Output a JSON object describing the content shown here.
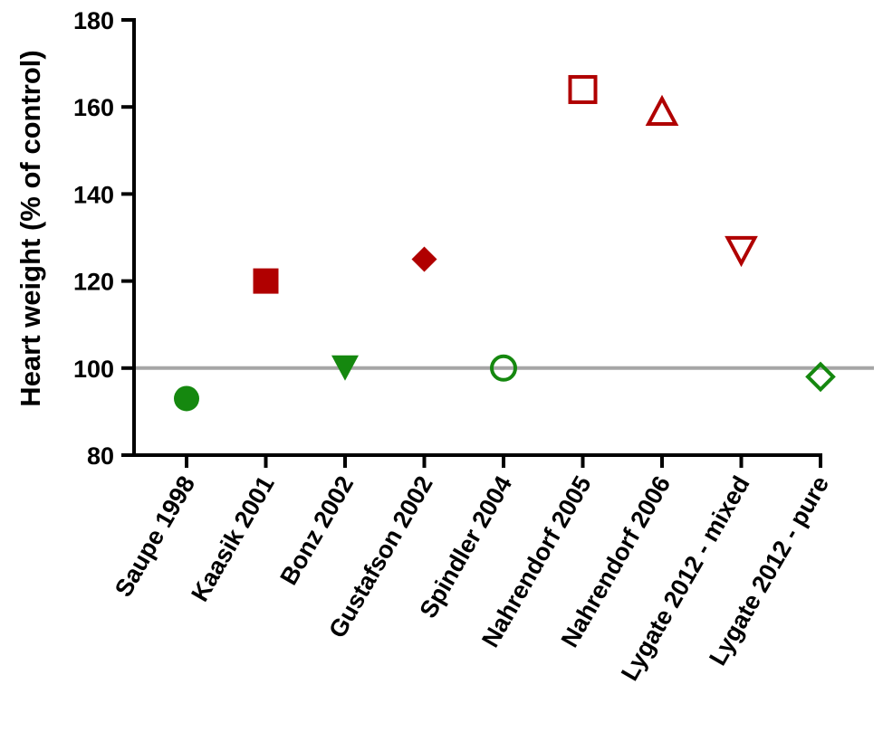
{
  "chart_data": {
    "type": "scatter",
    "title": "",
    "xlabel": "",
    "ylabel": "Heart weight (% of control)",
    "ylim": [
      80,
      180
    ],
    "yticks": [
      80,
      100,
      120,
      140,
      160,
      180
    ],
    "reference_line": {
      "y": 100,
      "color": "#a6a6a6"
    },
    "grid": false,
    "legend": "none",
    "categories": [
      "Saupe 1998",
      "Kaasik 2001",
      "Bonz 2002",
      "Gustafson 2002",
      "Spindler 2004",
      "Nahrendorf 2005",
      "Nahrendorf 2006",
      "Lygate 2012 - mixed",
      "Lygate 2012 - pure"
    ],
    "points": [
      {
        "category": "Saupe 1998",
        "y": 93,
        "marker": "circle",
        "filled": true,
        "color": "#15880f"
      },
      {
        "category": "Kaasik 2001",
        "y": 120,
        "marker": "square",
        "filled": true,
        "color": "#b00000"
      },
      {
        "category": "Bonz 2002",
        "y": 100,
        "marker": "triangle-down",
        "filled": true,
        "color": "#15880f"
      },
      {
        "category": "Gustafson 2002",
        "y": 125,
        "marker": "diamond",
        "filled": true,
        "color": "#b00000"
      },
      {
        "category": "Spindler 2004",
        "y": 100,
        "marker": "circle",
        "filled": false,
        "color": "#15880f"
      },
      {
        "category": "Nahrendorf 2005",
        "y": 164,
        "marker": "square",
        "filled": false,
        "color": "#b00000"
      },
      {
        "category": "Nahrendorf 2006",
        "y": 159,
        "marker": "triangle-up",
        "filled": false,
        "color": "#b00000"
      },
      {
        "category": "Lygate 2012 - mixed",
        "y": 127,
        "marker": "triangle-down",
        "filled": false,
        "color": "#b00000"
      },
      {
        "category": "Lygate 2012 - pure",
        "y": 98,
        "marker": "diamond",
        "filled": false,
        "color": "#15880f"
      }
    ]
  }
}
